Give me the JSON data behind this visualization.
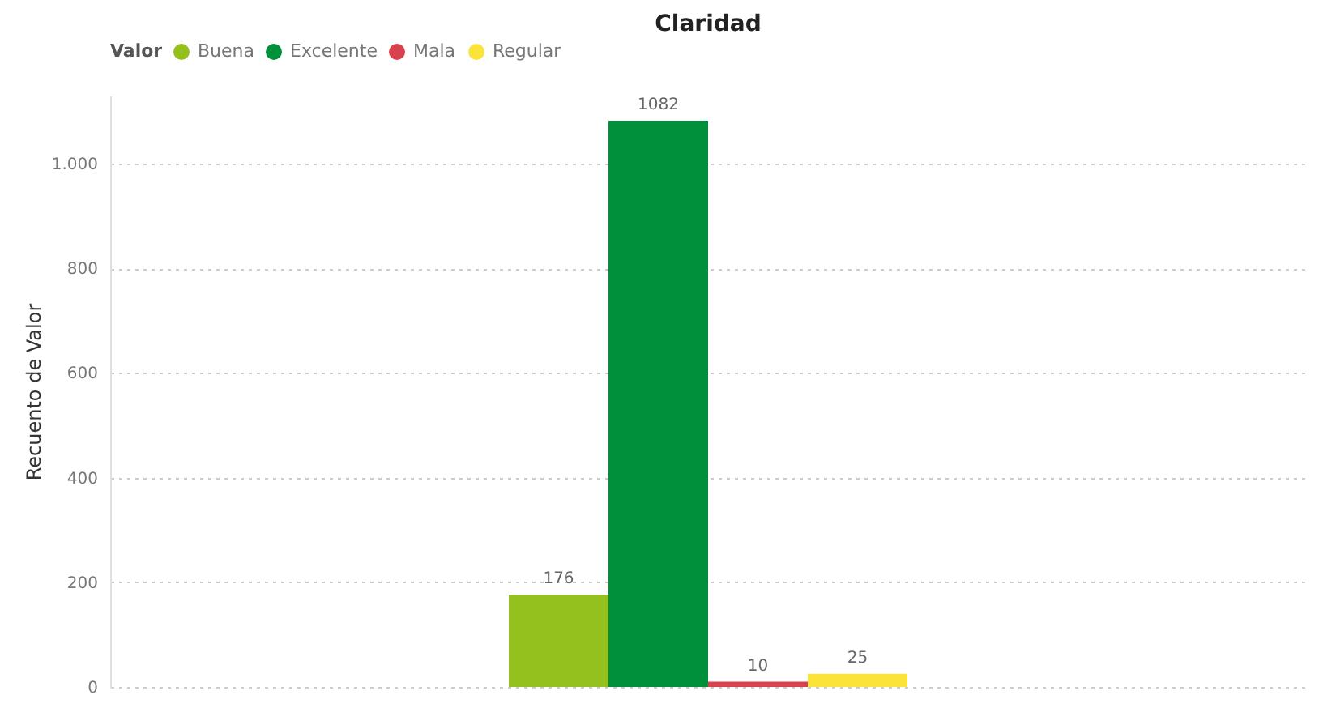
{
  "chart_data": {
    "type": "bar",
    "title": "Claridad",
    "ylabel": "Recuento de Valor",
    "legend_title": "Valor",
    "categories": [
      null
    ],
    "series": [
      {
        "name": "Buena",
        "color": "#95c11f",
        "values": [
          176
        ]
      },
      {
        "name": "Excelente",
        "color": "#008f3b",
        "values": [
          1082
        ]
      },
      {
        "name": "Mala",
        "color": "#d9414e",
        "values": [
          10
        ]
      },
      {
        "name": "Regular",
        "color": "#fce33a",
        "values": [
          25
        ]
      }
    ],
    "ylim": [
      0,
      1130
    ],
    "yticks": [
      0,
      200,
      400,
      600,
      800,
      {
        "value": 1000,
        "label": "1.000"
      }
    ],
    "grid": "y",
    "legend": "top left",
    "data_labels": true
  }
}
